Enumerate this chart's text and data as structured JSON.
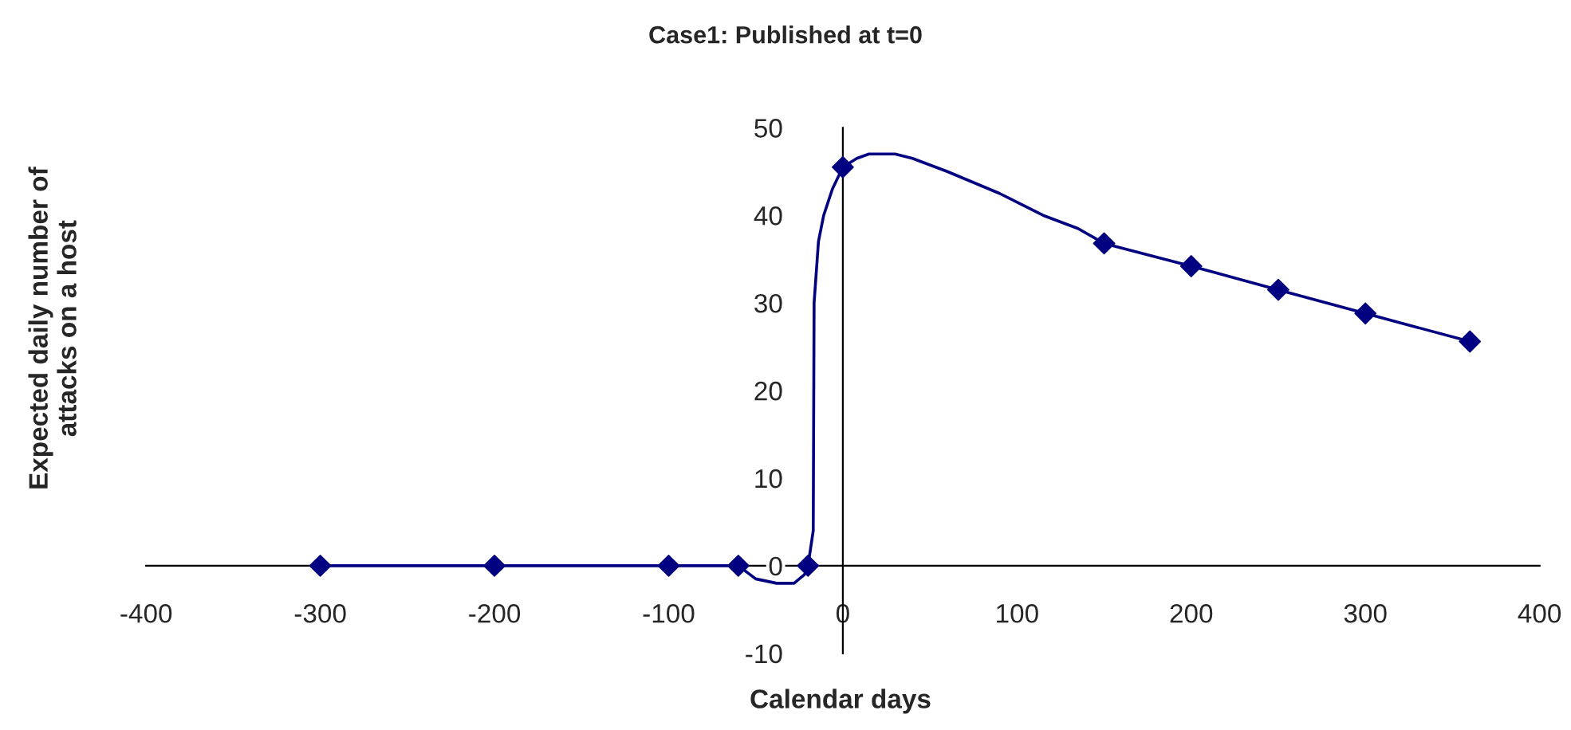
{
  "chart_data": {
    "type": "line",
    "title": "Case1: Published at t=0",
    "xlabel": "Calendar days",
    "ylabel": "Expected daily number of\nattacks on a host",
    "series": [
      {
        "color": "#000080",
        "marker": "none",
        "line_style": "solid",
        "x": [
          -300,
          -200,
          -100,
          -60,
          -50,
          -38,
          -28,
          -22,
          -20,
          -17,
          -16.5,
          -14,
          -11,
          -6,
          0,
          8,
          15,
          30,
          40,
          60,
          90,
          115,
          135,
          150,
          200,
          250,
          300,
          360
        ],
        "values": [
          0,
          0,
          0,
          0,
          -1.5,
          -2,
          -2,
          -1,
          0,
          4,
          30,
          37,
          40,
          43,
          45.5,
          46.5,
          47,
          47,
          46.5,
          45,
          42.5,
          40,
          38.5,
          36.8,
          34.2,
          31.5,
          28.8,
          25.6
        ]
      },
      {
        "type": "scatter",
        "color": "#000080",
        "marker": "diamond",
        "x": [
          -300,
          -200,
          -100,
          -60,
          -20,
          0,
          150,
          200,
          250,
          300,
          360
        ],
        "values": [
          0,
          0,
          0,
          0,
          0,
          45.5,
          36.8,
          34.2,
          31.5,
          28.8,
          25.6
        ]
      }
    ],
    "xlim": [
      -400,
      400
    ],
    "xticks": [
      -400,
      -300,
      -200,
      -100,
      0,
      100,
      200,
      300,
      400
    ],
    "ylim": [
      -10,
      50
    ],
    "yticks": [
      -10,
      0,
      10,
      20,
      30,
      40,
      50
    ],
    "grid": false,
    "legend": false
  }
}
